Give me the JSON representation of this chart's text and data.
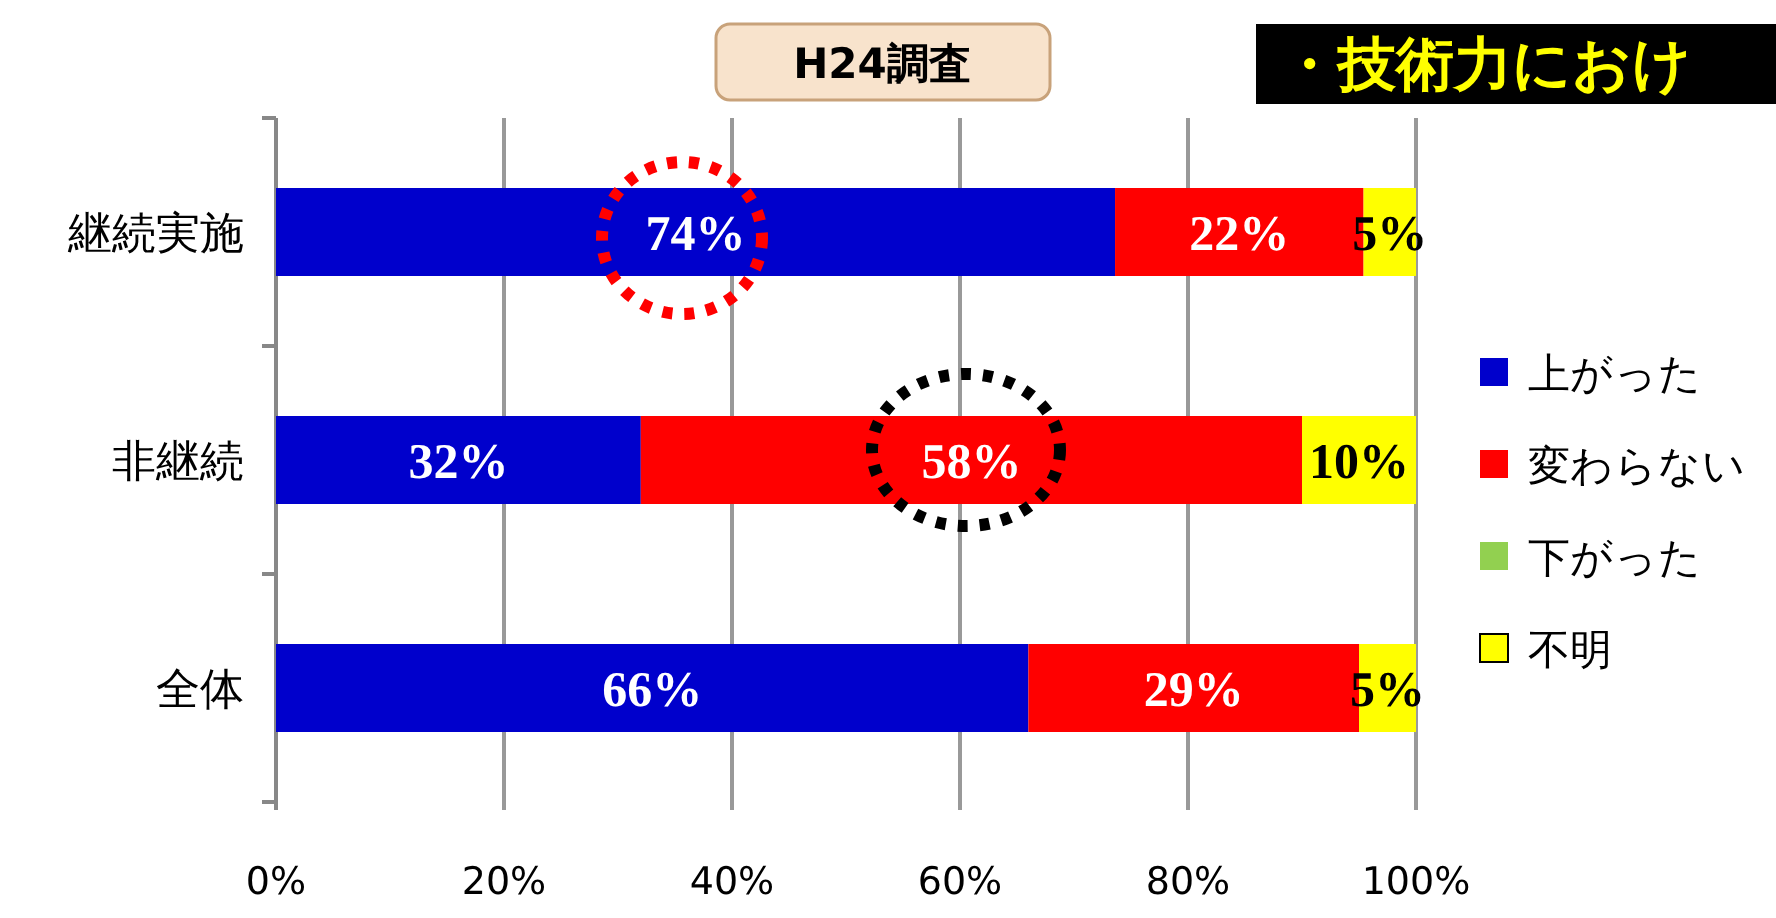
{
  "chart_data": {
    "type": "bar",
    "orientation": "horizontal",
    "stacked": true,
    "title": "H24調査",
    "annotations": [
      "・技術力におけ"
    ],
    "categories": [
      "継続実施",
      "非継続",
      "全体"
    ],
    "series": [
      {
        "name": "上がった",
        "color": "#0000cc",
        "values": [
          73.6,
          32,
          66
        ],
        "value_labels": [
          "74%",
          "32%",
          "66%"
        ]
      },
      {
        "name": "変わらない",
        "color": "#ff0000",
        "values": [
          21.8,
          58,
          29
        ],
        "value_labels": [
          "22%",
          "58%",
          "29%"
        ]
      },
      {
        "name": "下がった",
        "color": "#92d050",
        "values": [
          0,
          0,
          0
        ],
        "value_labels": [
          null,
          null,
          null
        ]
      },
      {
        "name": "不明",
        "color": "#ffff00",
        "values": [
          4.6,
          10,
          5
        ],
        "value_labels": [
          "5%",
          "10%",
          "5%"
        ]
      }
    ],
    "xlim": [
      0,
      100
    ],
    "xticks": [
      {
        "value": 0,
        "label": "0%"
      },
      {
        "value": 20,
        "label": "20%"
      },
      {
        "value": 40,
        "label": "40%"
      },
      {
        "value": 60,
        "label": "60%"
      },
      {
        "value": 80,
        "label": "80%"
      },
      {
        "value": 100,
        "label": "100%"
      }
    ],
    "grid": "x",
    "legend": "right"
  }
}
